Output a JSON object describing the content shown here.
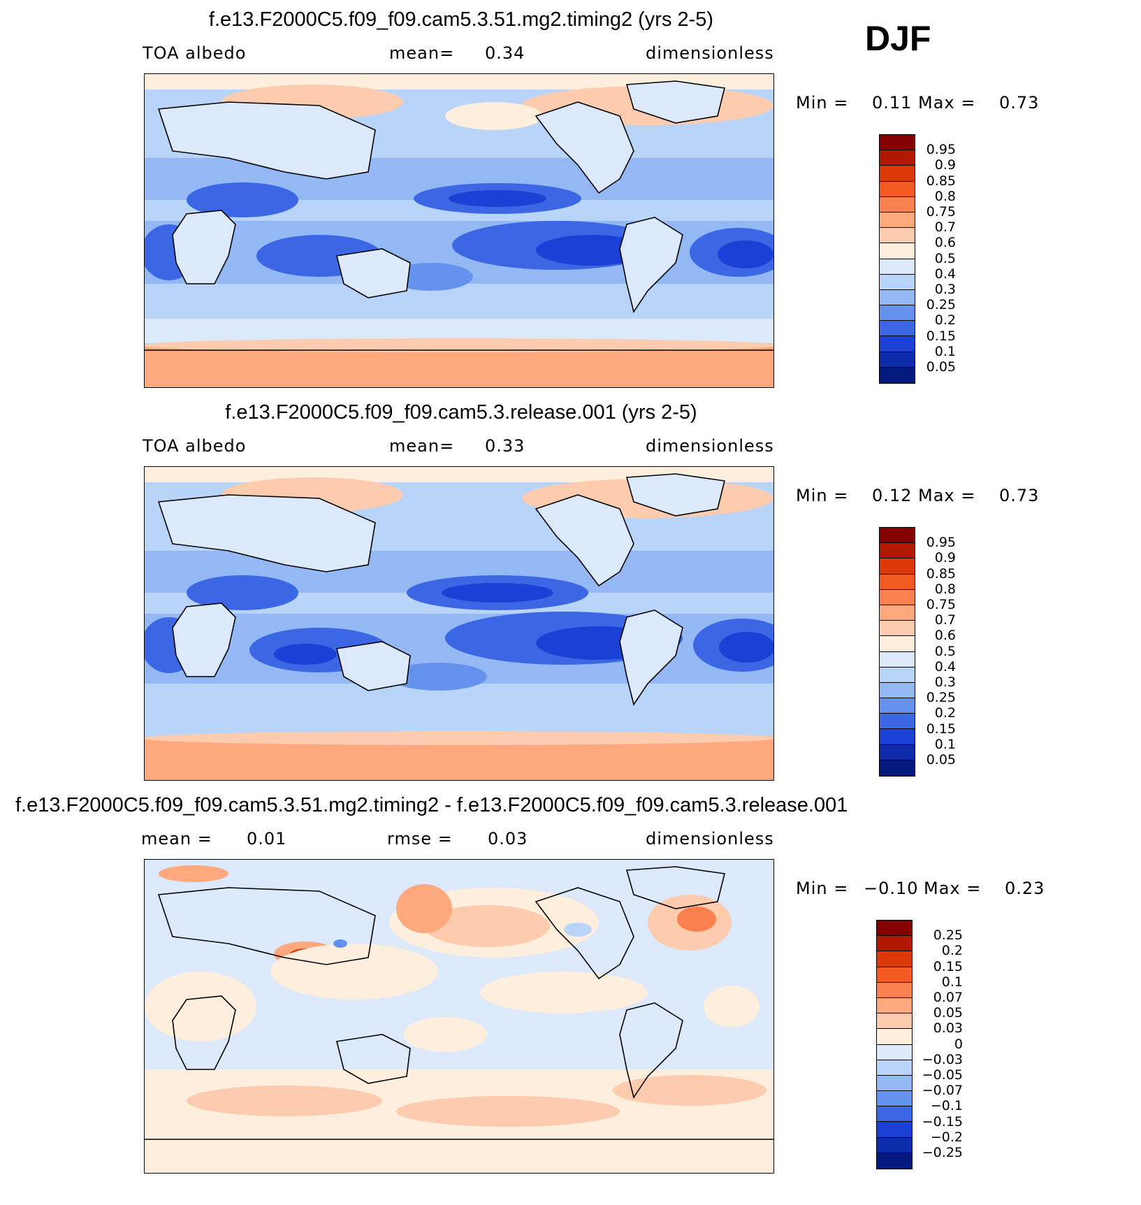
{
  "season": "DJF",
  "panels": [
    {
      "title": "f.e13.F2000C5.f09_f09.cam5.3.51.mg2.timing2 (yrs 2-5)",
      "left_label": "TOA albedo",
      "mid_label": "mean=",
      "mid_value": "0.34",
      "right_label": "dimensionless",
      "min_label": "Min =",
      "min_value": "0.11",
      "max_label": "Max =",
      "max_value": "0.73",
      "colorbar": {
        "labels": [
          "0.95",
          "0.9",
          "0.85",
          "0.8",
          "0.75",
          "0.7",
          "0.6",
          "0.5",
          "0.4",
          "0.3",
          "0.25",
          "0.2",
          "0.15",
          "0.1",
          "0.05"
        ],
        "colors": [
          "#840000",
          "#b01800",
          "#dd3a0a",
          "#f25a22",
          "#fb8050",
          "#fda97d",
          "#fdcbad",
          "#fdeedd",
          "#dbe9fa",
          "#b8d4f9",
          "#93b8f4",
          "#6592ec",
          "#3b66e4",
          "#1b40d6",
          "#0d2cab",
          "#041a7e"
        ]
      }
    },
    {
      "title": "f.e13.F2000C5.f09_f09.cam5.3.release.001 (yrs 2-5)",
      "left_label": "TOA albedo",
      "mid_label": "mean=",
      "mid_value": "0.33",
      "right_label": "dimensionless",
      "min_label": "Min =",
      "min_value": "0.12",
      "max_label": "Max =",
      "max_value": "0.73",
      "colorbar": {
        "labels": [
          "0.95",
          "0.9",
          "0.85",
          "0.8",
          "0.75",
          "0.7",
          "0.6",
          "0.5",
          "0.4",
          "0.3",
          "0.25",
          "0.2",
          "0.15",
          "0.1",
          "0.05"
        ],
        "colors": [
          "#840000",
          "#b01800",
          "#dd3a0a",
          "#f25a22",
          "#fb8050",
          "#fda97d",
          "#fdcbad",
          "#fdeedd",
          "#dbe9fa",
          "#b8d4f9",
          "#93b8f4",
          "#6592ec",
          "#3b66e4",
          "#1b40d6",
          "#0d2cab",
          "#041a7e"
        ]
      }
    },
    {
      "title": "f.e13.F2000C5.f09_f09.cam5.3.51.mg2.timing2 - f.e13.F2000C5.f09_f09.cam5.3.release.001",
      "left_label": "mean =",
      "left_value": "0.01",
      "mid_label": "rmse =",
      "mid_value": "0.03",
      "right_label": "dimensionless",
      "min_label": "Min =",
      "min_value": "−0.10",
      "max_label": "Max =",
      "max_value": "0.23",
      "colorbar": {
        "labels": [
          "0.25",
          "0.2",
          "0.15",
          "0.1",
          "0.07",
          "0.05",
          "0.03",
          "0",
          "−0.03",
          "−0.05",
          "−0.07",
          "−0.1",
          "−0.15",
          "−0.2",
          "−0.25"
        ],
        "colors": [
          "#840000",
          "#b01800",
          "#dd3a0a",
          "#f25a22",
          "#fb8050",
          "#fda97d",
          "#fdcbad",
          "#fdeedd",
          "#dbe9fa",
          "#b8d4f9",
          "#93b8f4",
          "#6592ec",
          "#3b66e4",
          "#1b40d6",
          "#0d2cab",
          "#041a7e"
        ]
      }
    }
  ]
}
